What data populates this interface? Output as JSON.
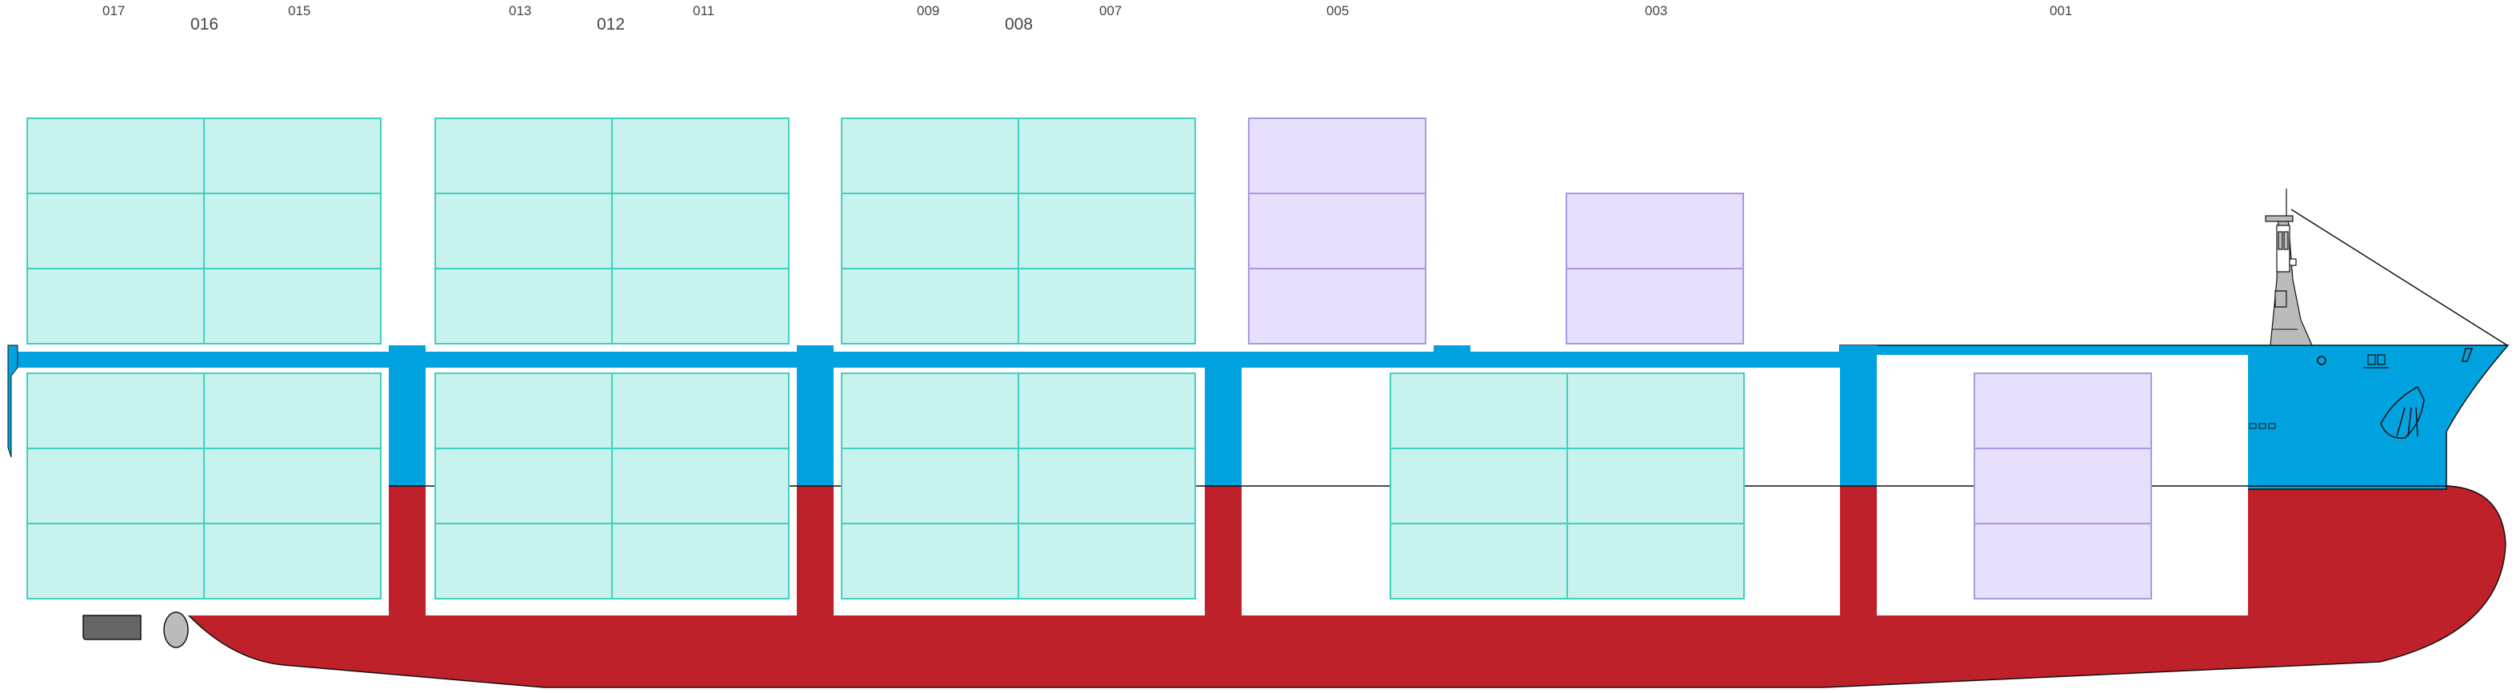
{
  "bay_labels": {
    "small": [
      "017",
      "015",
      "013",
      "011",
      "009",
      "007",
      "005",
      "003",
      "001"
    ],
    "large": [
      "016",
      "012",
      "008"
    ]
  },
  "colors": {
    "deck_blue": "#00a3e0",
    "hull_red": "#be2129",
    "hold_white": "#ffffff",
    "container_teal_fill": "#c8f2ed",
    "container_teal_stroke": "#40d0c0",
    "container_purple_fill": "#e6e0fc",
    "container_purple_stroke": "#a898e0",
    "superstructure_gray": "#bbbbbb",
    "outline": "#111111"
  },
  "container_groups": [
    {
      "name": "deck-bay-016",
      "kind": "teal",
      "tiers": 3,
      "rows": 2
    },
    {
      "name": "deck-bay-012",
      "kind": "teal",
      "tiers": 3,
      "rows": 2
    },
    {
      "name": "deck-bay-008",
      "kind": "teal",
      "tiers": 3,
      "rows": 2
    },
    {
      "name": "deck-bay-005",
      "kind": "purple",
      "tiers": 3,
      "rows": 1
    },
    {
      "name": "deck-bay-003",
      "kind": "purple",
      "tiers": 2,
      "rows": 1
    },
    {
      "name": "hold-bay-016",
      "kind": "teal",
      "tiers": 3,
      "rows": 2
    },
    {
      "name": "hold-bay-012",
      "kind": "teal",
      "tiers": 3,
      "rows": 2
    },
    {
      "name": "hold-bay-008",
      "kind": "teal",
      "tiers": 3,
      "rows": 2
    },
    {
      "name": "hold-bay-004",
      "kind": "teal",
      "tiers": 3,
      "rows": 2
    },
    {
      "name": "hold-bay-001",
      "kind": "purple",
      "tiers": 3,
      "rows": 1
    }
  ]
}
